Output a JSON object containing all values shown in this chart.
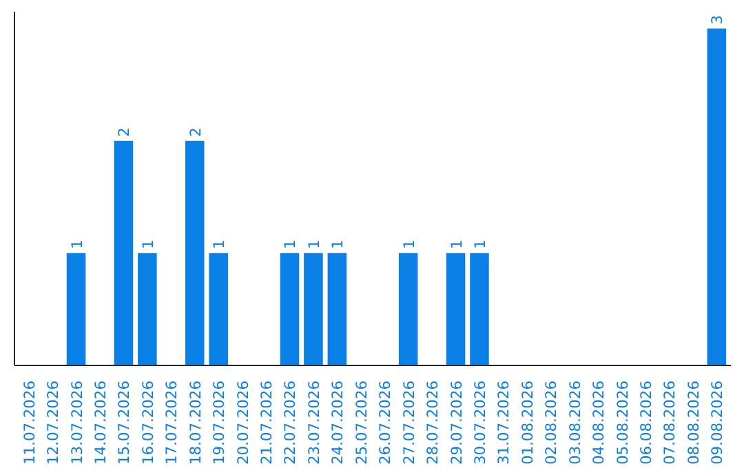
{
  "chart_data": {
    "type": "bar",
    "categories": [
      "11.07.2026",
      "12.07.2026",
      "13.07.2026",
      "14.07.2026",
      "15.07.2026",
      "16.07.2026",
      "17.07.2026",
      "18.07.2026",
      "19.07.2026",
      "20.07.2026",
      "21.07.2026",
      "22.07.2026",
      "23.07.2026",
      "24.07.2026",
      "25.07.2026",
      "26.07.2026",
      "27.07.2026",
      "28.07.2026",
      "29.07.2026",
      "30.07.2026",
      "31.07.2026",
      "01.08.2026",
      "02.08.2026",
      "03.08.2026",
      "04.08.2026",
      "05.08.2026",
      "06.08.2026",
      "07.08.2026",
      "08.08.2026",
      "09.08.2026"
    ],
    "values": [
      0,
      0,
      1,
      0,
      2,
      1,
      0,
      2,
      1,
      0,
      0,
      1,
      1,
      1,
      0,
      0,
      1,
      0,
      1,
      1,
      0,
      0,
      0,
      0,
      0,
      0,
      0,
      0,
      0,
      3
    ],
    "value_labels": [
      null,
      null,
      "1",
      null,
      "2",
      "1",
      null,
      "2",
      "1",
      null,
      null,
      "1",
      "1",
      "1",
      null,
      null,
      "1",
      null,
      "1",
      "1",
      null,
      null,
      null,
      null,
      null,
      null,
      null,
      null,
      null,
      "3"
    ],
    "color": "#0a7fe6",
    "grid": false,
    "tick_labels": "x"
  }
}
